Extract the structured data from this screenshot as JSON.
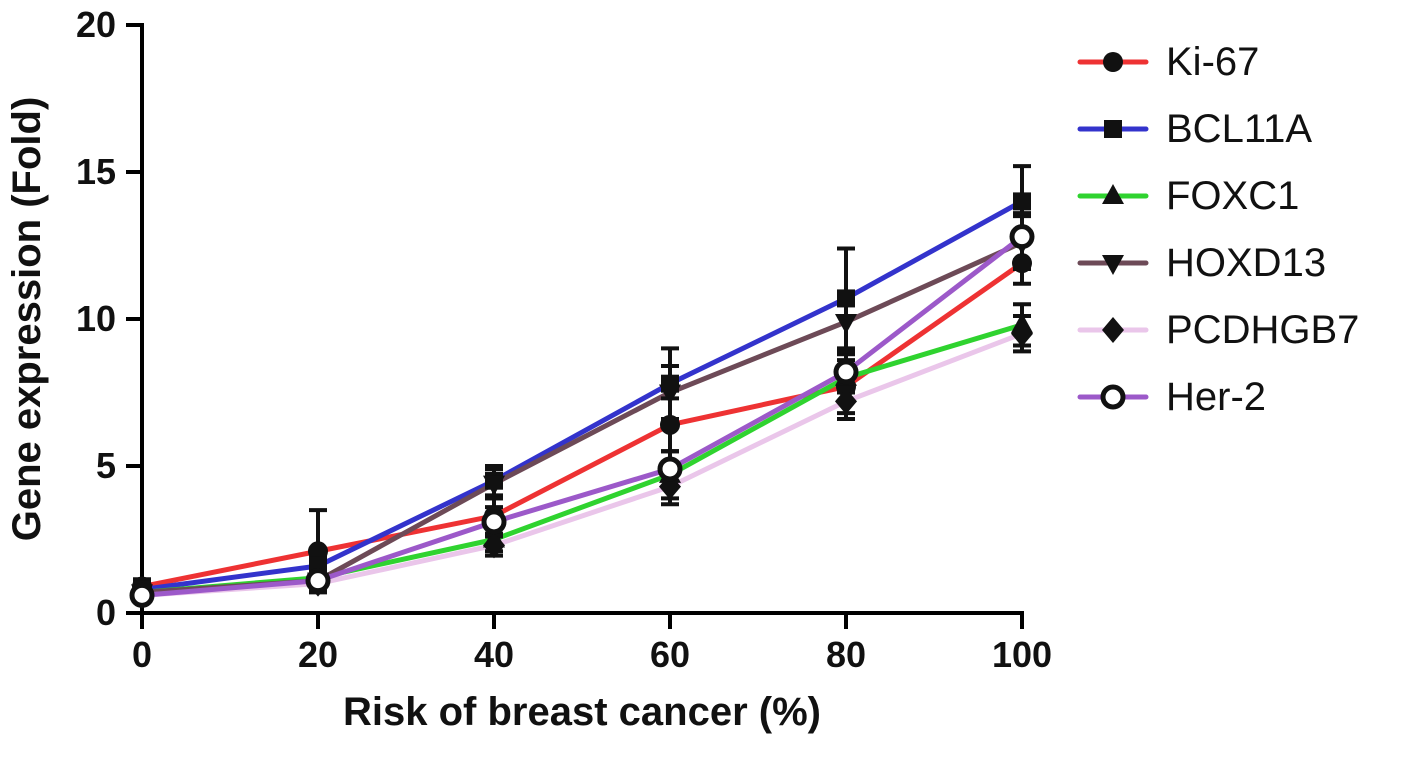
{
  "figure": {
    "background": "#ffffff",
    "axis_color": "#000000",
    "text_color": "#111111"
  },
  "chart_data": {
    "type": "line",
    "title": "",
    "xlabel": "Risk of breast cancer (%)",
    "ylabel": "Gene expression (Fold)",
    "x": [
      0,
      20,
      40,
      60,
      80,
      100
    ],
    "xlim": [
      0,
      100
    ],
    "ylim": [
      0,
      20
    ],
    "xticks": [
      0,
      20,
      40,
      60,
      80,
      100
    ],
    "yticks": [
      0,
      5,
      10,
      15,
      20
    ],
    "grid": false,
    "legend_position": "right",
    "error_bars": true,
    "marker_color": "#111111",
    "series": [
      {
        "name": "Ki-67",
        "color": "#ee3233",
        "marker": "circle",
        "values": [
          0.9,
          2.1,
          3.3,
          6.4,
          7.7,
          11.9
        ],
        "errors": [
          0.25,
          1.4,
          0.6,
          0.9,
          0.9,
          0.7
        ]
      },
      {
        "name": "BCL11A",
        "color": "#3333cc",
        "marker": "square",
        "values": [
          0.8,
          1.6,
          4.5,
          7.8,
          10.7,
          14.0
        ],
        "errors": [
          0.2,
          0.3,
          0.5,
          1.2,
          1.7,
          1.2
        ]
      },
      {
        "name": "FOXC1",
        "color": "#2fd32f",
        "marker": "triangle-up",
        "values": [
          0.7,
          1.2,
          2.5,
          4.7,
          8.0,
          9.8
        ],
        "errors": [
          0.15,
          0.3,
          0.4,
          0.8,
          0.8,
          0.7
        ]
      },
      {
        "name": "HOXD13",
        "color": "#6d4a57",
        "marker": "triangle-down",
        "values": [
          0.7,
          1.1,
          4.4,
          7.5,
          9.9,
          12.6
        ],
        "errors": [
          0.15,
          0.3,
          0.5,
          0.9,
          1.0,
          0.9
        ]
      },
      {
        "name": "PCDHGB7",
        "color": "#eac6ea",
        "marker": "diamond",
        "values": [
          0.6,
          1.0,
          2.3,
          4.3,
          7.2,
          9.5
        ],
        "errors": [
          0.15,
          0.25,
          0.35,
          0.6,
          0.6,
          0.6
        ]
      },
      {
        "name": "Her-2",
        "color": "#9c59c9",
        "marker": "circle-open",
        "values": [
          0.6,
          1.1,
          3.1,
          4.9,
          8.2,
          12.8
        ],
        "errors": [
          0.15,
          0.3,
          0.5,
          0.6,
          0.7,
          0.8
        ]
      }
    ]
  }
}
